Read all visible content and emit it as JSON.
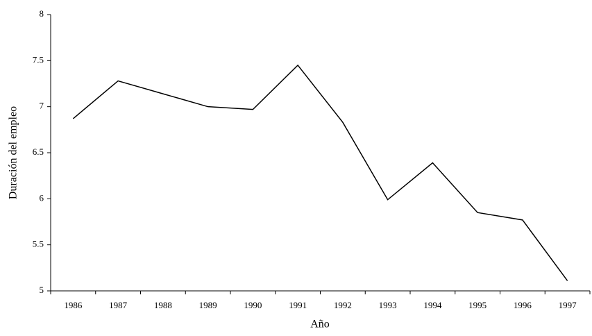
{
  "chart_data": {
    "type": "line",
    "x_label": "Año",
    "y_label": "Duración del empleo",
    "categories": [
      "1986",
      "1987",
      "1988",
      "1989",
      "1990",
      "1991",
      "1992",
      "1993",
      "1994",
      "1995",
      "1996",
      "1997"
    ],
    "values": [
      6.87,
      7.28,
      7.14,
      7.0,
      6.97,
      7.45,
      6.83,
      5.99,
      6.39,
      5.85,
      5.77,
      5.11
    ],
    "color": "#000000",
    "ylim": [
      5,
      8
    ],
    "yticks": [
      5,
      5.5,
      6,
      6.5,
      7,
      7.5,
      8
    ],
    "grid": false
  }
}
